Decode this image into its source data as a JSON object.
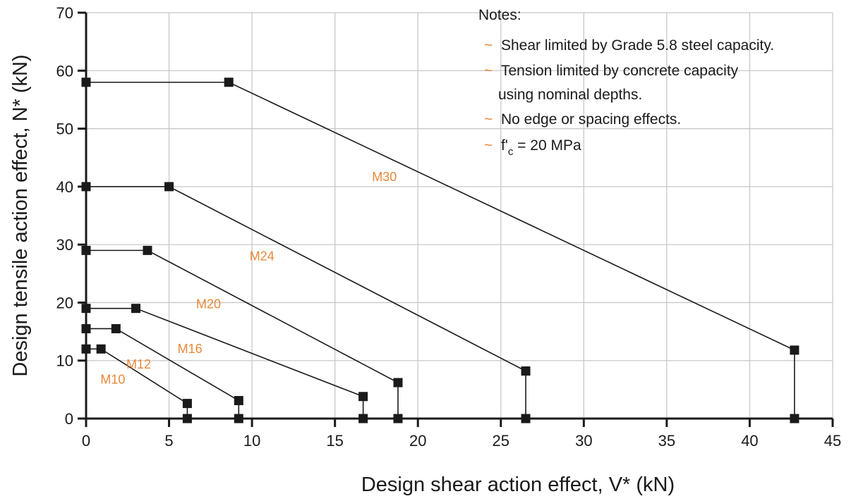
{
  "chart_data": {
    "type": "line",
    "title": "",
    "xlabel": "Design shear action effect, V* (kN)",
    "ylabel": "Design tensile action effect, N* (kN)",
    "xlim": [
      0,
      45
    ],
    "ylim": [
      0,
      70
    ],
    "x_ticks": [
      0,
      5,
      10,
      15,
      20,
      25,
      30,
      35,
      40,
      45
    ],
    "y_ticks": [
      0,
      10,
      20,
      30,
      40,
      50,
      60,
      70
    ],
    "x_tick_labels": [
      "0",
      "5",
      "10",
      "15",
      "20",
      "25",
      "30",
      "35",
      "40",
      "45"
    ],
    "y_tick_labels": [
      "0",
      "10",
      "20",
      "30",
      "40",
      "50",
      "60",
      "70"
    ],
    "grid": true,
    "series": [
      {
        "name": "M10",
        "x": [
          0,
          0.9,
          6.1,
          6.1
        ],
        "y": [
          12,
          12,
          2.6,
          0
        ]
      },
      {
        "name": "M12",
        "x": [
          0,
          1.8,
          9.2,
          9.2
        ],
        "y": [
          15.5,
          15.5,
          3.1,
          0
        ]
      },
      {
        "name": "M16",
        "x": [
          0,
          3,
          16.7,
          16.7
        ],
        "y": [
          19,
          19,
          3.8,
          0
        ]
      },
      {
        "name": "M20",
        "x": [
          0,
          3.7,
          18.8,
          18.8
        ],
        "y": [
          29,
          29,
          6.2,
          0
        ]
      },
      {
        "name": "M24",
        "x": [
          0,
          5,
          26.5,
          26.5
        ],
        "y": [
          40,
          40,
          8.2,
          0
        ]
      },
      {
        "name": "M30",
        "x": [
          0,
          8.6,
          42.7,
          42.7
        ],
        "y": [
          58,
          58,
          11.8,
          0
        ]
      }
    ],
    "series_label_color": "#e8893a",
    "line_color": "#1a1a1a",
    "marker_color": "#1a1a1a",
    "grid_color": "#c8c8c8",
    "notes": {
      "title": "Notes:",
      "items": [
        "Shear limited by Grade 5.8 steel capacity.",
        "Tension limited by concrete capacity",
        "using nominal depths.",
        "No edge or spacing effects."
      ],
      "bullet": "~",
      "fc": {
        "symbol": "f'",
        "subscript": "c",
        "rest": " = 20 MPa"
      }
    }
  }
}
